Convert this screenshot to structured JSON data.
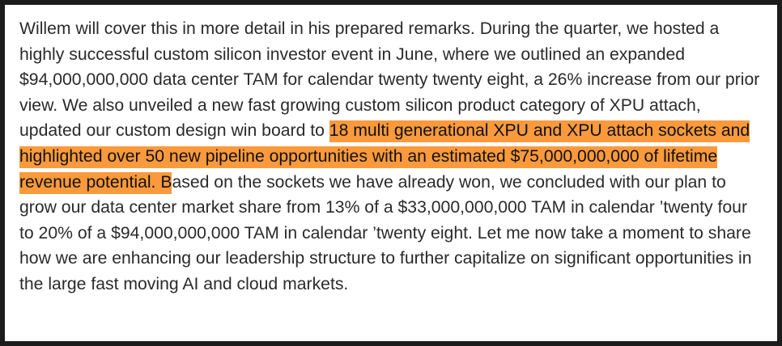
{
  "transcript": {
    "before_highlight": "Willem will cover this in more detail in his prepared remarks. During the quarter, we hosted a highly successful custom silicon investor event in June, where we outlined an expanded $94,000,000,000 data center TAM for calendar twenty twenty eight, a 26% increase from our prior view. We also unveiled a new fast growing custom silicon product category of XPU attach, updated our custom design win board to ",
    "highlighted": "18 multi generational XPU and XPU attach sockets and highlighted over 50 new pipeline opportunities with an estimated $75,000,000,000 of lifetime revenue potential. B",
    "after_highlight": "ased on the sockets we have already won, we concluded with our plan to grow our data center market share from 13% of a $33,000,000,000 TAM in calendar ’twenty four to 20% of a $94,000,000,000 TAM in calendar ’twenty eight. Let me now take a moment to share how we are enhancing our leadership structure to further capitalize on significant opportunities in the large fast moving AI and cloud markets.",
    "highlight_color": "#fa9a3c"
  }
}
